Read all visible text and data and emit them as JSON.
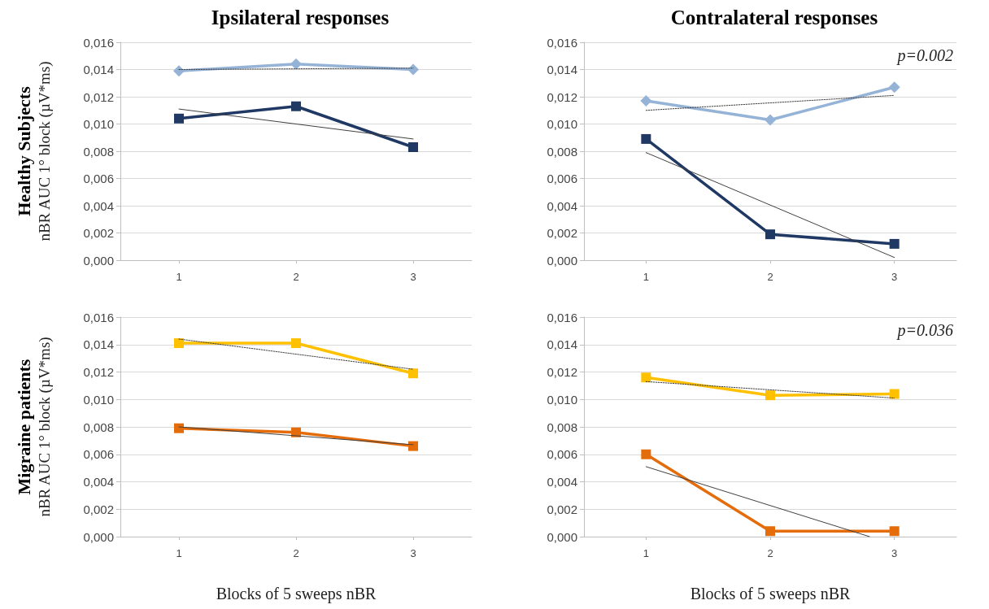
{
  "chart_data": [
    {
      "type": "line",
      "title": "Ipsilateral responses",
      "ylabel": "Healthy Subjects\nnBR AUC 1° block (µV*ms)",
      "xlim": [
        0.5,
        3.5
      ],
      "xticks": [
        1,
        2,
        3
      ],
      "ylim": [
        0,
        0.016
      ],
      "yticks": [
        {
          "value": 0,
          "label": "0,000"
        },
        {
          "value": 0.002,
          "label": "0,002"
        },
        {
          "value": 0.004,
          "label": "0,004"
        },
        {
          "value": 0.006,
          "label": "0,006"
        },
        {
          "value": 0.008,
          "label": "0,008"
        },
        {
          "value": 0.01,
          "label": "0,010"
        },
        {
          "value": 0.012,
          "label": "0,012"
        },
        {
          "value": 0.014,
          "label": "0,014"
        },
        {
          "value": 0.016,
          "label": "0,016"
        }
      ],
      "grid": "y",
      "series": [
        {
          "color": "#95b3d7",
          "marker": "diamond",
          "x": [
            1,
            2,
            3
          ],
          "values": [
            0.0139,
            0.0144,
            0.014
          ]
        },
        {
          "type": "line",
          "color": "#404040",
          "marker": "none",
          "line_style": "dotted",
          "x": [
            1,
            3
          ],
          "values": [
            0.014,
            0.0141
          ]
        },
        {
          "color": "#1f3864",
          "marker": "square",
          "x": [
            1,
            2,
            3
          ],
          "values": [
            0.0104,
            0.0113,
            0.0083
          ]
        },
        {
          "type": "line",
          "color": "#404040",
          "marker": "none",
          "line_style": "solid",
          "x": [
            1,
            3
          ],
          "values": [
            0.0111,
            0.0089
          ]
        }
      ]
    },
    {
      "type": "line",
      "title": "Contralateral responses",
      "annotations": [
        "p=0.002"
      ],
      "xlim": [
        0.5,
        3.5
      ],
      "xticks": [
        1,
        2,
        3
      ],
      "ylim": [
        0,
        0.016
      ],
      "yticks": [
        {
          "value": 0,
          "label": "0,000"
        },
        {
          "value": 0.002,
          "label": "0,002"
        },
        {
          "value": 0.004,
          "label": "0,004"
        },
        {
          "value": 0.006,
          "label": "0,006"
        },
        {
          "value": 0.008,
          "label": "0,008"
        },
        {
          "value": 0.01,
          "label": "0,010"
        },
        {
          "value": 0.012,
          "label": "0,012"
        },
        {
          "value": 0.014,
          "label": "0,014"
        },
        {
          "value": 0.016,
          "label": "0,016"
        }
      ],
      "grid": "y",
      "series": [
        {
          "color": "#95b3d7",
          "marker": "diamond",
          "x": [
            1,
            2,
            3
          ],
          "values": [
            0.0117,
            0.0103,
            0.0127
          ]
        },
        {
          "type": "line",
          "color": "#404040",
          "marker": "none",
          "line_style": "dotted",
          "x": [
            1,
            3
          ],
          "values": [
            0.011,
            0.0121
          ]
        },
        {
          "color": "#1f3864",
          "marker": "square",
          "x": [
            1,
            2,
            3
          ],
          "values": [
            0.0089,
            0.0019,
            0.0012
          ]
        },
        {
          "type": "line",
          "color": "#404040",
          "marker": "none",
          "line_style": "solid",
          "x": [
            1,
            3
          ],
          "values": [
            0.0079,
            0.0002
          ]
        }
      ]
    },
    {
      "type": "line",
      "ylabel": "Migraine patients\nnBR AUC 1° block (µV*ms)",
      "xlabel": "Blocks of 5 sweeps nBR",
      "xlim": [
        0.5,
        3.5
      ],
      "xticks": [
        1,
        2,
        3
      ],
      "ylim": [
        0,
        0.016
      ],
      "yticks": [
        {
          "value": 0,
          "label": "0,000"
        },
        {
          "value": 0.002,
          "label": "0,002"
        },
        {
          "value": 0.004,
          "label": "0,004"
        },
        {
          "value": 0.006,
          "label": "0,006"
        },
        {
          "value": 0.008,
          "label": "0,008"
        },
        {
          "value": 0.01,
          "label": "0,010"
        },
        {
          "value": 0.012,
          "label": "0,012"
        },
        {
          "value": 0.014,
          "label": "0,014"
        },
        {
          "value": 0.016,
          "label": "0,016"
        }
      ],
      "grid": "y",
      "series": [
        {
          "color": "#ffc000",
          "marker": "square",
          "x": [
            1,
            2,
            3
          ],
          "values": [
            0.0141,
            0.0141,
            0.0119
          ]
        },
        {
          "type": "line",
          "color": "#404040",
          "marker": "none",
          "line_style": "dotted",
          "x": [
            1,
            3
          ],
          "values": [
            0.0144,
            0.0122
          ]
        },
        {
          "color": "#e46c0a",
          "marker": "square",
          "x": [
            1,
            2,
            3
          ],
          "values": [
            0.0079,
            0.0076,
            0.0066
          ]
        },
        {
          "type": "line",
          "color": "#404040",
          "marker": "none",
          "line_style": "solid",
          "x": [
            1,
            3
          ],
          "values": [
            0.008,
            0.0067
          ]
        }
      ]
    },
    {
      "type": "line",
      "annotations": [
        "p=0.036"
      ],
      "xlabel": "Blocks of 5 sweeps nBR",
      "xlim": [
        0.5,
        3.5
      ],
      "xticks": [
        1,
        2,
        3
      ],
      "ylim": [
        0,
        0.016
      ],
      "yticks": [
        {
          "value": 0,
          "label": "0,000"
        },
        {
          "value": 0.002,
          "label": "0,002"
        },
        {
          "value": 0.004,
          "label": "0,004"
        },
        {
          "value": 0.006,
          "label": "0,006"
        },
        {
          "value": 0.008,
          "label": "0,008"
        },
        {
          "value": 0.01,
          "label": "0,010"
        },
        {
          "value": 0.012,
          "label": "0,012"
        },
        {
          "value": 0.014,
          "label": "0,014"
        },
        {
          "value": 0.016,
          "label": "0,016"
        }
      ],
      "grid": "y",
      "series": [
        {
          "color": "#ffc000",
          "marker": "square",
          "x": [
            1,
            2,
            3
          ],
          "values": [
            0.0116,
            0.0103,
            0.0104
          ]
        },
        {
          "type": "line",
          "color": "#404040",
          "marker": "none",
          "line_style": "dotted",
          "x": [
            1,
            3
          ],
          "values": [
            0.0113,
            0.0101
          ]
        },
        {
          "color": "#e46c0a",
          "marker": "square",
          "x": [
            1,
            2,
            3
          ],
          "values": [
            0.006,
            0.0004,
            0.0004
          ]
        },
        {
          "type": "line",
          "color": "#404040",
          "marker": "none",
          "line_style": "solid",
          "x": [
            1,
            2.8
          ],
          "values": [
            0.0051,
            0.0
          ]
        }
      ]
    }
  ]
}
